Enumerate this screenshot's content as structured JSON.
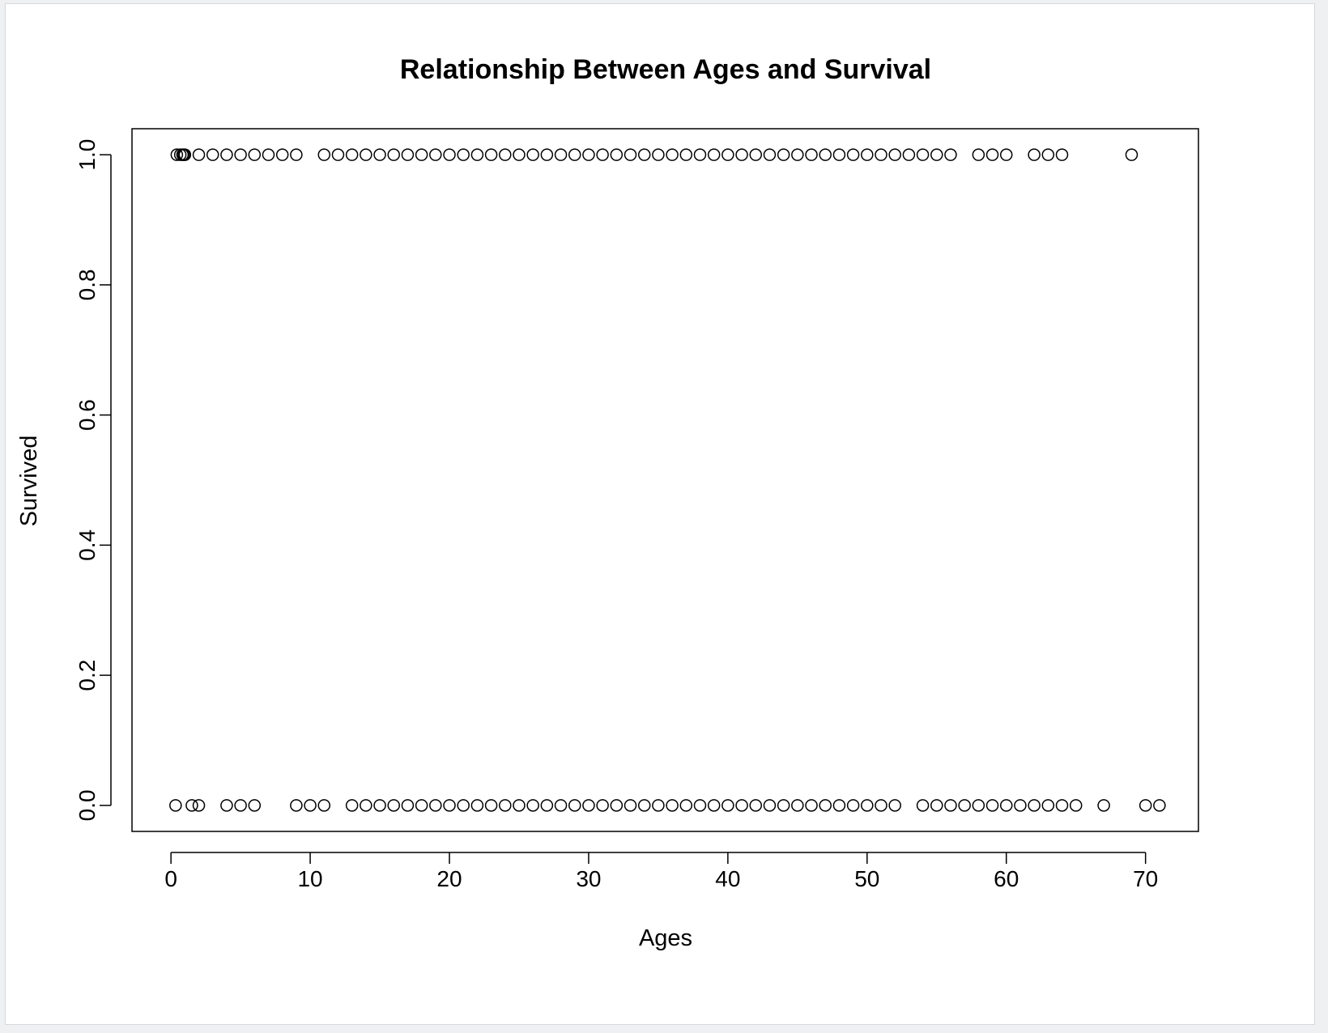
{
  "chart_data": {
    "type": "scatter",
    "title": "Relationship Between Ages and Survival",
    "xlabel": "Ages",
    "ylabel": "Survived",
    "xlim": [
      -2.8,
      73.8
    ],
    "ylim": [
      -0.04,
      1.04
    ],
    "xticks": [
      0,
      10,
      20,
      30,
      40,
      50,
      60,
      70
    ],
    "yticks": [
      0.0,
      0.2,
      0.4,
      0.6,
      0.8,
      1.0
    ],
    "ytick_labels": [
      "0.0",
      "0.2",
      "0.4",
      "0.6",
      "0.8",
      "1.0"
    ],
    "grid": false,
    "marker": "open-circle",
    "series": [
      {
        "y": 1,
        "x": [
          0.42,
          0.67,
          0.83,
          0.92,
          1,
          2,
          3,
          4,
          5,
          6,
          7,
          8,
          9,
          11,
          12,
          13,
          14,
          15,
          16,
          17,
          18,
          19,
          20,
          21,
          22,
          23,
          24,
          25,
          26,
          27,
          28,
          29,
          30,
          31,
          32,
          33,
          34,
          35,
          36,
          37,
          38,
          39,
          40,
          41,
          42,
          43,
          44,
          45,
          46,
          47,
          48,
          49,
          50,
          51,
          52,
          53,
          54,
          55,
          56,
          58,
          59,
          60,
          62,
          63,
          64,
          69
        ]
      },
      {
        "y": 0,
        "x": [
          0.33,
          1.5,
          2,
          4,
          5,
          6,
          9,
          10,
          11,
          13,
          14,
          15,
          16,
          17,
          18,
          19,
          20,
          21,
          22,
          23,
          24,
          25,
          26,
          27,
          28,
          29,
          30,
          31,
          32,
          33,
          34,
          35,
          36,
          37,
          38,
          39,
          40,
          41,
          42,
          43,
          44,
          45,
          46,
          47,
          48,
          49,
          50,
          51,
          52,
          54,
          55,
          56,
          57,
          58,
          59,
          60,
          61,
          62,
          63,
          64,
          65,
          67,
          70,
          71
        ]
      }
    ]
  }
}
